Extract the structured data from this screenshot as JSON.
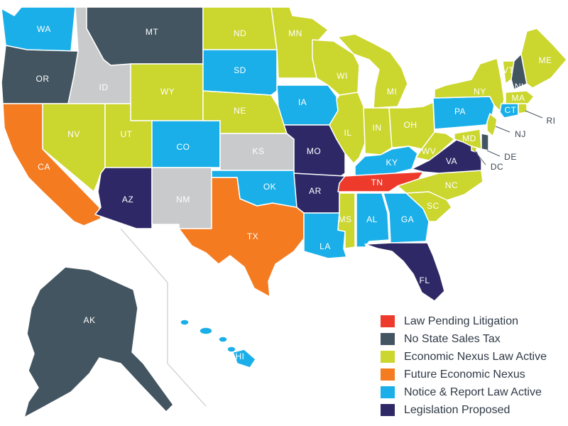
{
  "legend": [
    {
      "key": "pending",
      "label": "Law Pending Litigation",
      "color": "#ee3a2b"
    },
    {
      "key": "no_tax",
      "label": "No State Sales Tax",
      "color": "#435560"
    },
    {
      "key": "nexus",
      "label": "Economic Nexus Law Active",
      "color": "#cbd62e"
    },
    {
      "key": "future",
      "label": "Future Economic Nexus",
      "color": "#f47b20"
    },
    {
      "key": "notice",
      "label": "Notice & Report Law Active",
      "color": "#1aafe8"
    },
    {
      "key": "proposed",
      "label": "Legislation Proposed",
      "color": "#2e2966"
    }
  ],
  "no_data_color": "#c9cacc",
  "states": {
    "WA": "notice",
    "OR": "no_tax",
    "CA": "future",
    "ID": "none",
    "NV": "nexus",
    "MT": "no_tax",
    "WY": "nexus",
    "UT": "nexus",
    "AZ": "proposed",
    "CO": "notice",
    "NM": "none",
    "ND": "nexus",
    "SD": "notice",
    "NE": "nexus",
    "KS": "none",
    "OK": "notice",
    "TX": "future",
    "MN": "nexus",
    "IA": "notice",
    "MO": "proposed",
    "AR": "proposed",
    "LA": "notice",
    "WI": "nexus",
    "IL": "nexus",
    "MI": "nexus",
    "IN": "nexus",
    "OH": "nexus",
    "KY": "notice",
    "TN": "pending",
    "MS": "nexus",
    "AL": "notice",
    "GA": "notice",
    "FL": "proposed",
    "SC": "nexus",
    "NC": "nexus",
    "VA": "proposed",
    "WV": "nexus",
    "PA": "notice",
    "NY": "nexus",
    "VT": "nexus",
    "NH": "no_tax",
    "ME": "nexus",
    "MA": "nexus",
    "CT": "notice",
    "RI": "nexus",
    "NJ": "nexus",
    "DE": "no_tax",
    "MD": "nexus",
    "DC": "nexus",
    "AK": "no_tax",
    "HI": "notice"
  },
  "labels": {
    "WA": "WA",
    "OR": "OR",
    "CA": "CA",
    "ID": "ID",
    "NV": "NV",
    "MT": "MT",
    "WY": "WY",
    "UT": "UT",
    "AZ": "AZ",
    "CO": "CO",
    "NM": "NM",
    "ND": "ND",
    "SD": "SD",
    "NE": "NE",
    "KS": "KS",
    "OK": "OK",
    "TX": "TX",
    "MN": "MN",
    "IA": "IA",
    "MO": "MO",
    "AR": "AR",
    "LA": "LA",
    "WI": "WI",
    "IL": "IL",
    "MI": "MI",
    "IN": "IN",
    "OH": "OH",
    "KY": "KY",
    "TN": "TN",
    "MS": "MS",
    "AL": "AL",
    "GA": "GA",
    "FL": "FL",
    "SC": "SC",
    "NC": "NC",
    "VA": "VA",
    "WV": "WV",
    "PA": "PA",
    "NY": "NY",
    "VT": "VT",
    "NH": "NH",
    "ME": "ME",
    "MA": "MA",
    "CT": "CT",
    "RI": "RI",
    "NJ": "NJ",
    "DE": "DE",
    "MD": "MD",
    "DC": "DC",
    "AK": "AK",
    "HI": "HI"
  }
}
